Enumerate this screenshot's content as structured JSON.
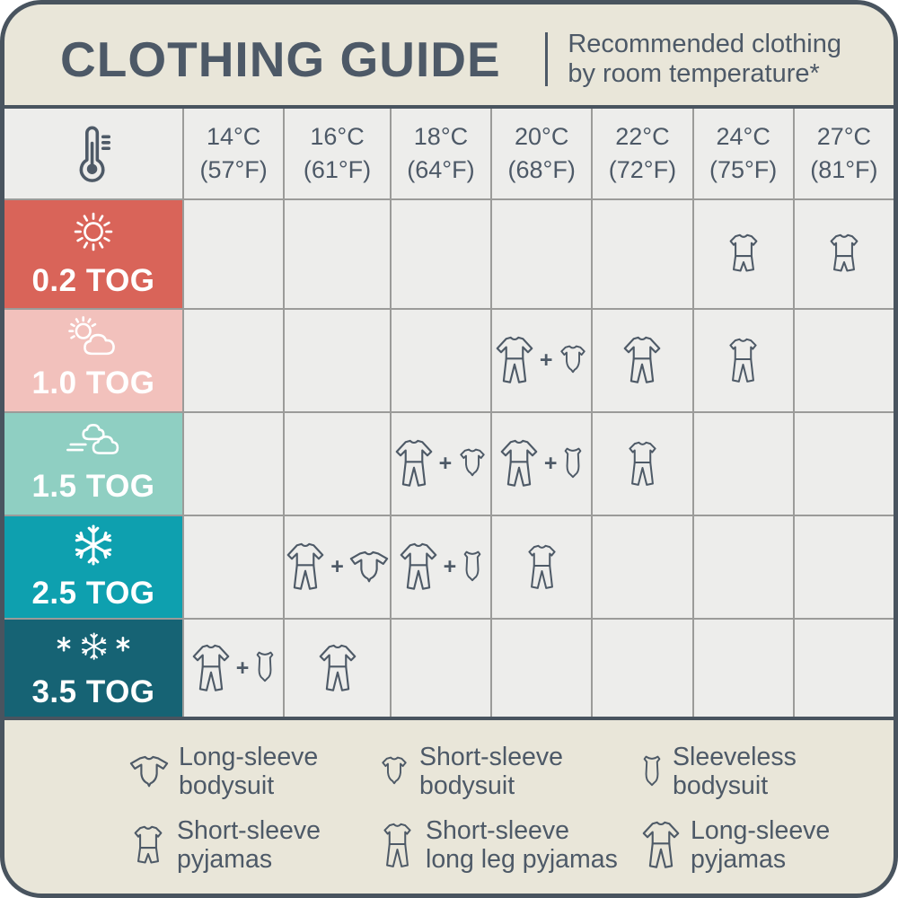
{
  "header": {
    "title": "CLOTHING GUIDE",
    "subtitle_line1": "Recommended clothing",
    "subtitle_line2": "by room temperature*"
  },
  "colors": {
    "card_background": "#e9e6d9",
    "outer_border": "#49545f",
    "grid_line": "#9b9b99",
    "cell_background": "#ededeb",
    "text_slate": "#4d5967",
    "tog_0_2": "#d96459",
    "tog_1_0": "#f2c1bc",
    "tog_1_5": "#8fcfc2",
    "tog_2_5": "#0ea0af",
    "tog_3_5": "#166374"
  },
  "table": {
    "corner_icon": "thermometer",
    "plus_sign": "+",
    "columns": [
      [
        "14°C",
        "(57°F)"
      ],
      [
        "16°C",
        "(61°F)"
      ],
      [
        "18°C",
        "(64°F)"
      ],
      [
        "20°C",
        "(68°F)"
      ],
      [
        "22°C",
        "(72°F)"
      ],
      [
        "24°C",
        "(75°F)"
      ],
      [
        "27°C",
        "(81°F)"
      ]
    ],
    "rows": [
      {
        "tog": "0.2 TOG",
        "weather": "sun",
        "color": "#d96459",
        "cells": [
          [],
          [],
          [],
          [],
          [],
          [
            "short-sleeve-pyjamas"
          ],
          [
            "short-sleeve-pyjamas"
          ]
        ]
      },
      {
        "tog": "1.0 TOG",
        "weather": "sun-cloud",
        "color": "#f2c1bc",
        "cells": [
          [],
          [],
          [],
          [
            "long-sleeve-pyjamas",
            "+",
            "short-sleeve-bodysuit"
          ],
          [
            "long-sleeve-pyjamas"
          ],
          [
            "short-sleeve-long-leg-pyjamas"
          ],
          []
        ]
      },
      {
        "tog": "1.5 TOG",
        "weather": "wind-clouds",
        "color": "#8fcfc2",
        "cells": [
          [],
          [],
          [
            "long-sleeve-pyjamas",
            "+",
            "short-sleeve-bodysuit"
          ],
          [
            "long-sleeve-pyjamas",
            "+",
            "sleeveless-bodysuit"
          ],
          [
            "short-sleeve-long-leg-pyjamas"
          ],
          [],
          []
        ]
      },
      {
        "tog": "2.5 TOG",
        "weather": "snowflake",
        "color": "#0ea0af",
        "cells": [
          [],
          [
            "long-sleeve-pyjamas",
            "+",
            "long-sleeve-bodysuit"
          ],
          [
            "long-sleeve-pyjamas",
            "+",
            "sleeveless-bodysuit"
          ],
          [
            "short-sleeve-long-leg-pyjamas"
          ],
          [],
          [],
          []
        ]
      },
      {
        "tog": "3.5 TOG",
        "weather": "snowflakes",
        "color": "#166374",
        "cells": [
          [
            "long-sleeve-pyjamas",
            "+",
            "sleeveless-bodysuit"
          ],
          [
            "long-sleeve-pyjamas"
          ],
          [],
          [],
          [],
          [],
          []
        ]
      }
    ]
  },
  "legend": {
    "rows": [
      [
        {
          "icon": "long-sleeve-bodysuit",
          "lines": [
            "Long-sleeve",
            "bodysuit"
          ]
        },
        {
          "icon": "short-sleeve-bodysuit",
          "lines": [
            "Short-sleeve",
            "bodysuit"
          ]
        },
        {
          "icon": "sleeveless-bodysuit",
          "lines": [
            "Sleeveless",
            "bodysuit"
          ]
        }
      ],
      [
        {
          "icon": "short-sleeve-pyjamas",
          "lines": [
            "Short-sleeve",
            "pyjamas"
          ]
        },
        {
          "icon": "short-sleeve-long-leg-pyjamas",
          "lines": [
            "Short-sleeve",
            "long leg pyjamas"
          ]
        },
        {
          "icon": "long-sleeve-pyjamas",
          "lines": [
            "Long-sleeve",
            "pyjamas"
          ]
        }
      ]
    ]
  },
  "chart_data": {
    "type": "table",
    "title": "CLOTHING GUIDE",
    "subtitle": "Recommended clothing by room temperature*",
    "columns": [
      "14°C (57°F)",
      "16°C (61°F)",
      "18°C (64°F)",
      "20°C (68°F)",
      "22°C (72°F)",
      "24°C (75°F)",
      "27°C (81°F)"
    ],
    "rows": [
      {
        "label": "0.2 TOG",
        "cells": [
          null,
          null,
          null,
          null,
          null,
          "Short-sleeve pyjamas",
          "Short-sleeve pyjamas"
        ]
      },
      {
        "label": "1.0 TOG",
        "cells": [
          null,
          null,
          null,
          "Long-sleeve pyjamas + Short-sleeve bodysuit",
          "Long-sleeve pyjamas",
          "Short-sleeve long leg pyjamas",
          null
        ]
      },
      {
        "label": "1.5 TOG",
        "cells": [
          null,
          null,
          "Long-sleeve pyjamas + Short-sleeve bodysuit",
          "Long-sleeve pyjamas + Sleeveless bodysuit",
          "Short-sleeve long leg pyjamas",
          null,
          null
        ]
      },
      {
        "label": "2.5 TOG",
        "cells": [
          null,
          "Long-sleeve pyjamas + Long-sleeve bodysuit",
          "Long-sleeve pyjamas + Sleeveless bodysuit",
          "Short-sleeve long leg pyjamas",
          null,
          null,
          null
        ]
      },
      {
        "label": "3.5 TOG",
        "cells": [
          "Long-sleeve pyjamas + Sleeveless bodysuit",
          "Long-sleeve pyjamas",
          null,
          null,
          null,
          null,
          null
        ]
      }
    ]
  }
}
